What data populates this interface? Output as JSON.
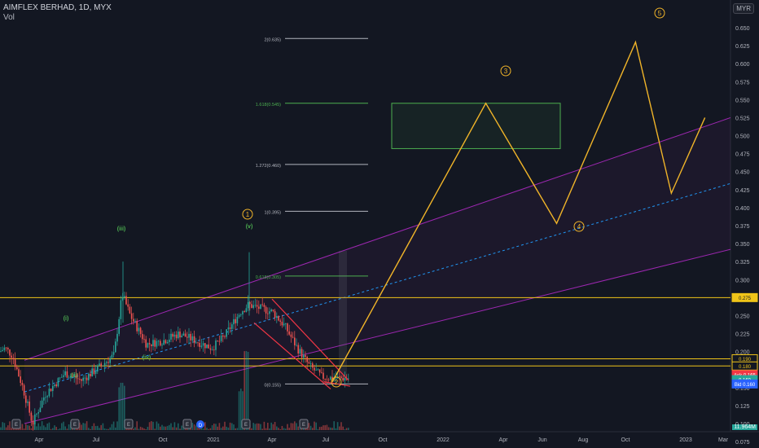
{
  "header": {
    "title": "AIMFLEX BERHAD, 1D, MYX",
    "volume_label": "Vol",
    "currency": "MYR"
  },
  "chart_data": {
    "type": "candlestick",
    "price_axis_ticks": [
      "0.650",
      "0.625",
      "0.600",
      "0.575",
      "0.550",
      "0.525",
      "0.500",
      "0.475",
      "0.450",
      "0.425",
      "0.400",
      "0.375",
      "0.350",
      "0.325",
      "0.300",
      "0.275",
      "0.250",
      "0.225",
      "0.200",
      "0.180",
      "0.150",
      "0.125",
      "0.100",
      "0.075"
    ],
    "time_axis_labels": [
      "Apr",
      "Jul",
      "Oct",
      "2021",
      "Apr",
      "Jul",
      "Oct",
      "2022",
      "Apr",
      "Jun",
      "Aug",
      "Oct",
      "2023",
      "Mar"
    ],
    "price_tags": [
      {
        "label": "0.275",
        "color": "#f0c419",
        "text_color": "#131722",
        "value": 0.275
      },
      {
        "label": "0.190",
        "color": "#131722",
        "text_color": "#f0c419",
        "value": 0.19
      },
      {
        "label": "0.180",
        "color": "#131722",
        "text_color": "#f0c419",
        "value": 0.18
      },
      {
        "label": "Ask 0.165",
        "color": "#f23645",
        "text_color": "#ffffff",
        "value": 0.168
      },
      {
        "label": "0.160",
        "color": "#26a69a",
        "text_color": "#ffffff",
        "value": 0.161
      },
      {
        "label": "Bid 0.160",
        "color": "#2962ff",
        "text_color": "#ffffff",
        "value": 0.155
      }
    ],
    "volume_readout": "11.964M",
    "fib_levels": [
      {
        "label": "2(0.635)",
        "value": 0.635,
        "color": "#b2b5be"
      },
      {
        "label": "1.618(0.545)",
        "value": 0.545,
        "color": "#4caf50"
      },
      {
        "label": "1.272(0.460)",
        "value": 0.46,
        "color": "#b2b5be"
      },
      {
        "label": "1(0.395)",
        "value": 0.395,
        "color": "#b2b5be"
      },
      {
        "label": "0.618(0.305)",
        "value": 0.305,
        "color": "#4caf50"
      },
      {
        "label": "0(0.155)",
        "value": 0.155,
        "color": "#b2b5be"
      }
    ],
    "horizontal_lines": [
      0.275,
      0.19,
      0.18
    ],
    "wave_labels_orange": [
      "1",
      "2",
      "3",
      "4",
      "5"
    ],
    "wave_labels_green": [
      "(i)",
      "(ii)",
      "(iii)",
      "(iv)",
      "(v)"
    ],
    "forecast_path": [
      {
        "t": 0.455,
        "p": 0.158
      },
      {
        "t": 0.665,
        "p": 0.545,
        "label": "3"
      },
      {
        "t": 0.762,
        "p": 0.378,
        "label": "4"
      },
      {
        "t": 0.87,
        "p": 0.63,
        "label": "5"
      },
      {
        "t": 0.919,
        "p": 0.42
      },
      {
        "t": 0.965,
        "p": 0.525
      }
    ],
    "target_box": {
      "p_top": 0.545,
      "p_bottom": 0.482
    },
    "event_markers": [
      "E",
      "E",
      "E",
      "E",
      "E",
      "D",
      "E",
      "E"
    ]
  }
}
